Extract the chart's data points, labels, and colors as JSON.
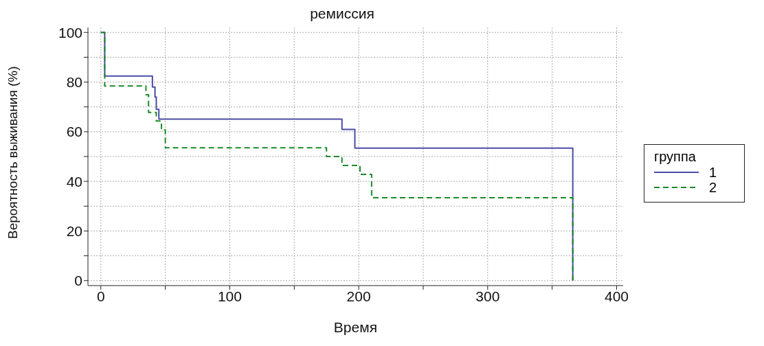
{
  "chart_data": {
    "type": "step",
    "title": "ремиссия",
    "xlabel": "Время",
    "ylabel": "Вероятность выживания (%)",
    "legend_title": "группа",
    "series": [
      {
        "name": "1",
        "color": "#4b4ba6",
        "line_style": "solid",
        "x": [
          0,
          3,
          40,
          42,
          43,
          45,
          187,
          197,
          366,
          366
        ],
        "values": [
          100,
          82.4,
          78,
          74,
          69,
          65.1,
          60.9,
          53.4,
          53.4,
          0
        ]
      },
      {
        "name": "2",
        "color": "#1a8a2a",
        "line_style": "dashed",
        "x": [
          0,
          3,
          35,
          37,
          43,
          47,
          50,
          175,
          187,
          201,
          210,
          366,
          366
        ],
        "values": [
          100,
          78.4,
          74.9,
          67.8,
          64.3,
          60.7,
          53.5,
          50,
          46.4,
          42.8,
          33.4,
          33.4,
          0
        ]
      }
    ],
    "xlim": [
      -10,
      405
    ],
    "ylim": [
      -2,
      102
    ],
    "xticks": [
      0,
      {
        "value": 50,
        "label": null
      },
      100,
      {
        "value": 150,
        "label": null
      },
      200,
      {
        "value": 250,
        "label": null
      },
      300,
      {
        "value": 350,
        "label": null
      },
      400
    ],
    "yticks": [
      0,
      {
        "value": 10,
        "label": null
      },
      20,
      {
        "value": 30,
        "label": null
      },
      40,
      {
        "value": 50,
        "label": null
      },
      60,
      {
        "value": 70,
        "label": null
      },
      80,
      {
        "value": 90,
        "label": null
      },
      100
    ],
    "grid": true,
    "legend": "right",
    "marker": "none"
  }
}
